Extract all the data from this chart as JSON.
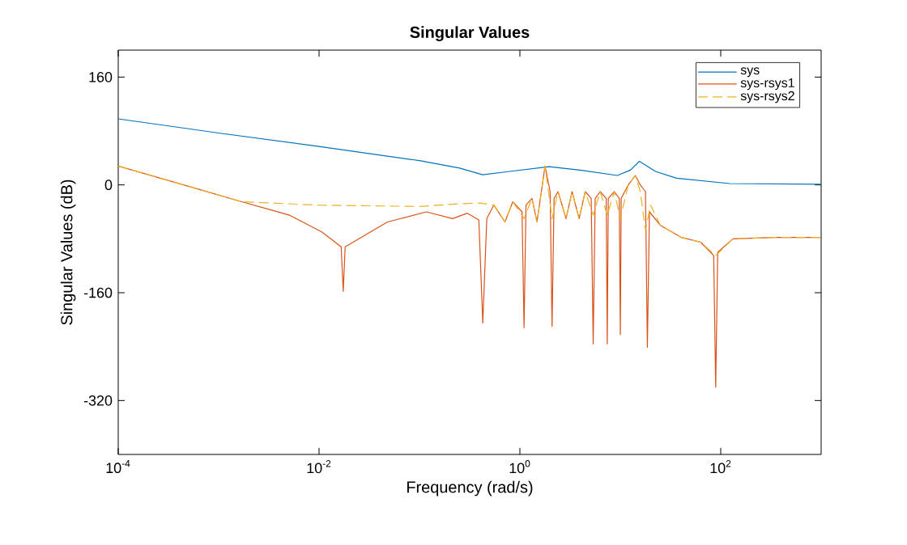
{
  "chart_data": {
    "type": "line",
    "title": "Singular Values",
    "xlabel": "Frequency (rad/s)",
    "ylabel": "Singular Values (dB)",
    "log": "x",
    "xlim": [
      0.0001,
      1000
    ],
    "ylim": [
      -400,
      200
    ],
    "xticks": [
      {
        "value": 0.0001,
        "label": "10$^{-4}$"
      },
      {
        "value": 0.01,
        "label": "10$^{-2}$"
      },
      {
        "value": 1,
        "label": "10$^{0}$"
      },
      {
        "value": 100,
        "label": "10$^{2}$"
      }
    ],
    "yticks": [
      -320,
      -160,
      0,
      160
    ],
    "grid": false,
    "legend": "top right",
    "series": [
      {
        "name": "sys",
        "color": "#0072bd",
        "line_style": "solid",
        "x": [
          0.0001,
          0.001,
          0.01,
          0.1,
          0.251,
          0.427,
          0.79,
          1.95,
          3.98,
          9.33,
          12.6,
          15.5,
          22.4,
          36.3,
          123,
          1000
        ],
        "values": [
          98,
          77,
          57,
          36,
          25,
          15,
          20,
          27,
          22,
          14,
          22,
          35,
          20,
          10,
          2,
          1
        ]
      },
      {
        "name": "sys-rsys1",
        "color": "#d95319",
        "line_style": "solid",
        "x": [
          0.0001,
          0.0017,
          0.0051,
          0.0107,
          0.0166,
          0.0174,
          0.0182,
          0.048,
          0.117,
          0.214,
          0.3,
          0.39,
          0.427,
          0.468,
          0.55,
          0.71,
          0.85,
          1.05,
          1.1,
          1.15,
          1.32,
          1.48,
          1.78,
          2.0,
          2.09,
          2.19,
          2.4,
          2.88,
          3.31,
          3.89,
          4.47,
          5.13,
          5.37,
          5.62,
          6.31,
          7.24,
          7.41,
          7.59,
          8.71,
          9.77,
          10,
          10.2,
          12.0,
          14.1,
          15.8,
          17.8,
          18.6,
          19.5,
          25.1,
          40.7,
          63.1,
          79.4,
          85.1,
          89.1,
          93.3,
          132,
          339,
          1000
        ],
        "values": [
          28,
          -25,
          -45,
          -70,
          -92,
          -158,
          -92,
          -55,
          -40,
          -50,
          -42,
          -52,
          -205,
          -50,
          -30,
          -55,
          -25,
          -40,
          -212,
          -30,
          -20,
          -55,
          28,
          -10,
          -210,
          -20,
          -10,
          -50,
          -10,
          -50,
          -10,
          -20,
          -236,
          -20,
          -10,
          -20,
          -236,
          -20,
          -10,
          -20,
          -222,
          -20,
          0,
          14,
          0,
          -10,
          -241,
          -40,
          -60,
          -78,
          -85,
          -100,
          -105,
          -300,
          -100,
          -80,
          -78,
          -78
        ]
      },
      {
        "name": "sys-rsys2",
        "color": "#edb120",
        "line_style": "dashed",
        "x": [
          0.0001,
          0.001,
          0.0017,
          0.01,
          0.1,
          0.251,
          0.4,
          0.55,
          0.71,
          0.85,
          1.1,
          1.32,
          1.48,
          1.78,
          2.09,
          2.4,
          2.88,
          3.31,
          3.89,
          4.47,
          5.37,
          6.31,
          7.41,
          8.71,
          10,
          12.0,
          14.1,
          15.8,
          17.8,
          20,
          25.1,
          40.7,
          63.1,
          89.1,
          132,
          339,
          1000
        ],
        "values": [
          28,
          -15,
          -25,
          -30,
          -32,
          -28,
          -27,
          -30,
          -55,
          -25,
          -50,
          -20,
          -55,
          28,
          -50,
          -10,
          -50,
          -10,
          -50,
          -10,
          -45,
          -10,
          -45,
          -10,
          -50,
          0,
          14,
          -10,
          -67,
          -30,
          -60,
          -78,
          -85,
          -105,
          -80,
          -78,
          -78
        ]
      }
    ]
  }
}
